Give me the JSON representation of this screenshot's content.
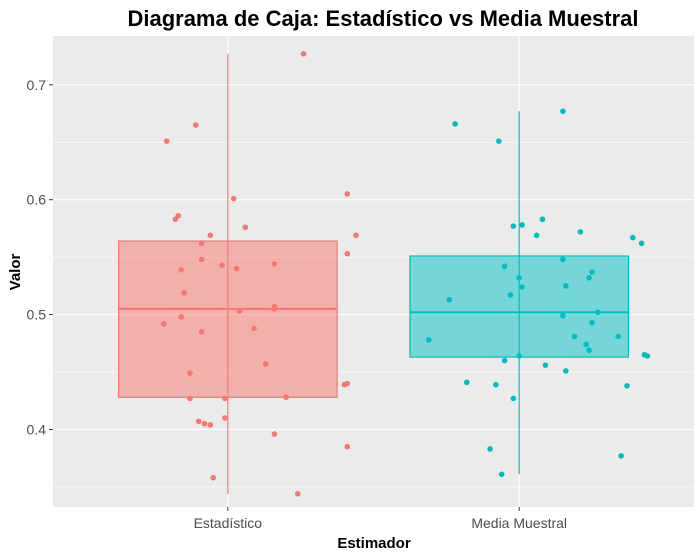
{
  "chart_data": {
    "type": "boxplot",
    "title": "Diagrama de Caja: Estadístico vs Media Muestral",
    "xlabel": "Estimador",
    "ylabel": "Valor",
    "categories": [
      "Estadístico",
      "Media Muestral"
    ],
    "ylim": [
      0.3325,
      0.7425
    ],
    "yticks": [
      0.4,
      0.5,
      0.6,
      0.7
    ],
    "ytick_labels": [
      "0.4",
      "0.5",
      "0.6",
      "0.7"
    ],
    "grid": true,
    "legend": "none",
    "series": [
      {
        "category": "Estadístico",
        "color": "#F8766D",
        "box": {
          "whisker_low": 0.344,
          "q1": 0.428,
          "median": 0.505,
          "q3": 0.564,
          "whisker_high": 0.727
        },
        "points": [
          {
            "x": 0.79,
            "y": 0.651
          },
          {
            "x": 0.89,
            "y": 0.665
          },
          {
            "x": 1.26,
            "y": 0.727
          },
          {
            "x": 1.41,
            "y": 0.605
          },
          {
            "x": 1.02,
            "y": 0.601
          },
          {
            "x": 0.82,
            "y": 0.583
          },
          {
            "x": 0.83,
            "y": 0.586
          },
          {
            "x": 1.06,
            "y": 0.576
          },
          {
            "x": 0.98,
            "y": 0.543
          },
          {
            "x": 1.44,
            "y": 0.569
          },
          {
            "x": 0.94,
            "y": 0.569
          },
          {
            "x": 0.91,
            "y": 0.562
          },
          {
            "x": 0.91,
            "y": 0.548
          },
          {
            "x": 0.84,
            "y": 0.539
          },
          {
            "x": 1.03,
            "y": 0.54
          },
          {
            "x": 1.16,
            "y": 0.544
          },
          {
            "x": 1.41,
            "y": 0.553
          },
          {
            "x": 0.85,
            "y": 0.519
          },
          {
            "x": 1.16,
            "y": 0.505
          },
          {
            "x": 1.16,
            "y": 0.507
          },
          {
            "x": 1.04,
            "y": 0.503
          },
          {
            "x": 0.84,
            "y": 0.498
          },
          {
            "x": 0.78,
            "y": 0.492
          },
          {
            "x": 0.91,
            "y": 0.485
          },
          {
            "x": 1.09,
            "y": 0.488
          },
          {
            "x": 1.13,
            "y": 0.457
          },
          {
            "x": 0.87,
            "y": 0.449
          },
          {
            "x": 1.4,
            "y": 0.439
          },
          {
            "x": 1.41,
            "y": 0.44
          },
          {
            "x": 1.2,
            "y": 0.428
          },
          {
            "x": 0.99,
            "y": 0.427
          },
          {
            "x": 0.87,
            "y": 0.427
          },
          {
            "x": 0.9,
            "y": 0.407
          },
          {
            "x": 0.92,
            "y": 0.405
          },
          {
            "x": 0.94,
            "y": 0.404
          },
          {
            "x": 0.99,
            "y": 0.41
          },
          {
            "x": 1.16,
            "y": 0.396
          },
          {
            "x": 1.41,
            "y": 0.385
          },
          {
            "x": 0.95,
            "y": 0.358
          },
          {
            "x": 1.24,
            "y": 0.344
          }
        ]
      },
      {
        "category": "Media Muestral",
        "color": "#00BFC4",
        "box": {
          "whisker_low": 0.361,
          "q1": 0.463,
          "median": 0.502,
          "q3": 0.551,
          "whisker_high": 0.677
        },
        "points": [
          {
            "x": 1.78,
            "y": 0.666
          },
          {
            "x": 1.93,
            "y": 0.651
          },
          {
            "x": 2.15,
            "y": 0.677
          },
          {
            "x": 2.01,
            "y": 0.578
          },
          {
            "x": 2.08,
            "y": 0.583
          },
          {
            "x": 1.98,
            "y": 0.577
          },
          {
            "x": 2.21,
            "y": 0.572
          },
          {
            "x": 2.06,
            "y": 0.569
          },
          {
            "x": 2.39,
            "y": 0.567
          },
          {
            "x": 2.42,
            "y": 0.562
          },
          {
            "x": 2.15,
            "y": 0.548
          },
          {
            "x": 1.95,
            "y": 0.542
          },
          {
            "x": 2.25,
            "y": 0.537
          },
          {
            "x": 2.24,
            "y": 0.532
          },
          {
            "x": 2.0,
            "y": 0.532
          },
          {
            "x": 2.01,
            "y": 0.524
          },
          {
            "x": 2.16,
            "y": 0.525
          },
          {
            "x": 1.97,
            "y": 0.517
          },
          {
            "x": 1.76,
            "y": 0.513
          },
          {
            "x": 2.27,
            "y": 0.502
          },
          {
            "x": 2.15,
            "y": 0.499
          },
          {
            "x": 2.25,
            "y": 0.493
          },
          {
            "x": 2.34,
            "y": 0.481
          },
          {
            "x": 2.19,
            "y": 0.481
          },
          {
            "x": 1.69,
            "y": 0.478
          },
          {
            "x": 2.23,
            "y": 0.474
          },
          {
            "x": 2.24,
            "y": 0.469
          },
          {
            "x": 2.43,
            "y": 0.465
          },
          {
            "x": 2.44,
            "y": 0.464
          },
          {
            "x": 2.0,
            "y": 0.464
          },
          {
            "x": 1.95,
            "y": 0.46
          },
          {
            "x": 2.09,
            "y": 0.456
          },
          {
            "x": 2.16,
            "y": 0.451
          },
          {
            "x": 1.82,
            "y": 0.441
          },
          {
            "x": 1.92,
            "y": 0.439
          },
          {
            "x": 2.37,
            "y": 0.438
          },
          {
            "x": 1.98,
            "y": 0.427
          },
          {
            "x": 1.9,
            "y": 0.383
          },
          {
            "x": 2.35,
            "y": 0.377
          },
          {
            "x": 1.94,
            "y": 0.361
          }
        ]
      }
    ]
  }
}
